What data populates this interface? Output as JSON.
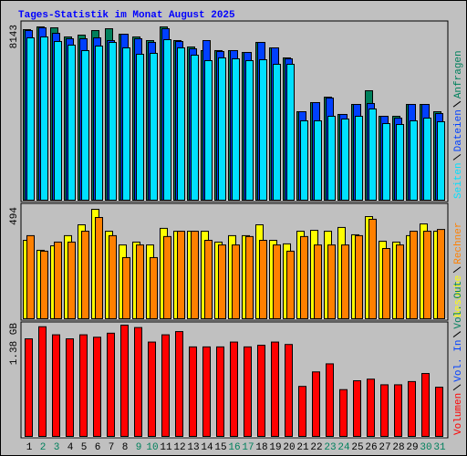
{
  "title": "Tages-Statistik im Monat August 2025",
  "chart_data": [
    {
      "type": "bar",
      "ylim": [
        0,
        8143
      ],
      "yticks": [
        8143
      ],
      "legend_reverse": true,
      "series": [
        {
          "name": "Anfragen",
          "color": "#00805C",
          "values": [
            8014,
            8143,
            8100,
            7671,
            7757,
            7971,
            8057,
            7800,
            7671,
            7500,
            8143,
            7500,
            7200,
            7029,
            7029,
            7029,
            6943,
            7414,
            7157,
            6686,
            4157,
            4586,
            4843,
            4029,
            4500,
            5143,
            3943,
            3943,
            4500,
            4500,
            4157
          ]
        },
        {
          "name": "Dateien",
          "color": "#0040FF",
          "values": [
            7971,
            8100,
            7843,
            7586,
            7586,
            7629,
            7500,
            7800,
            7586,
            7414,
            8057,
            7457,
            7114,
            7500,
            6986,
            7029,
            6943,
            7414,
            7157,
            6643,
            4157,
            4586,
            4800,
            4029,
            4500,
            4543,
            3943,
            3857,
            4500,
            4500,
            4071
          ]
        },
        {
          "name": "Seiten",
          "color": "#00E0FF",
          "values": [
            7629,
            7671,
            7457,
            7286,
            7029,
            7243,
            7414,
            7157,
            6857,
            6900,
            7543,
            7157,
            6814,
            6557,
            6686,
            6643,
            6557,
            6600,
            6386,
            6386,
            3729,
            3729,
            3943,
            3814,
            3943,
            4286,
            3600,
            3557,
            3729,
            3857,
            3686
          ]
        }
      ]
    },
    {
      "type": "bar",
      "ylim": [
        0,
        494
      ],
      "yticks": [
        494
      ],
      "series": [
        {
          "name": "Besuche",
          "color": "#FFFF00",
          "values": [
            354,
            309,
            329,
            375,
            424,
            494,
            395,
            333,
            346,
            333,
            408,
            395,
            395,
            395,
            346,
            375,
            375,
            424,
            354,
            338,
            395,
            399,
            395,
            412,
            379,
            461,
            350,
            346,
            375,
            428,
            395
          ]
        },
        {
          "name": "Rechner",
          "color": "#FF8000",
          "values": [
            375,
            305,
            346,
            346,
            395,
            457,
            375,
            276,
            333,
            276,
            371,
            395,
            395,
            354,
            333,
            333,
            371,
            354,
            333,
            305,
            371,
            333,
            333,
            333,
            375,
            449,
            317,
            333,
            395,
            395,
            403
          ]
        }
      ]
    },
    {
      "type": "bar",
      "ylim": [
        0,
        1.38
      ],
      "yticks": [
        {
          "value": 1.38,
          "label": "1.38 GB"
        }
      ],
      "categories": [
        "1",
        "2",
        "3",
        "4",
        "5",
        "6",
        "7",
        "8",
        "9",
        "10",
        "11",
        "12",
        "13",
        "14",
        "15",
        "16",
        "17",
        "18",
        "19",
        "20",
        "21",
        "22",
        "23",
        "24",
        "25",
        "26",
        "27",
        "28",
        "29",
        "30",
        "31"
      ],
      "category_colors": [
        "#000000",
        "#00805C",
        "#00805C",
        "#000000",
        "#000000",
        "#000000",
        "#000000",
        "#000000",
        "#00805C",
        "#00805C",
        "#000000",
        "#000000",
        "#000000",
        "#000000",
        "#000000",
        "#00805C",
        "#00805C",
        "#000000",
        "#000000",
        "#000000",
        "#000000",
        "#000000",
        "#00805C",
        "#00805C",
        "#000000",
        "#000000",
        "#000000",
        "#000000",
        "#000000",
        "#00805C",
        "#00805C"
      ],
      "series": [
        {
          "name": "Volumen",
          "color": "#FF0000",
          "values": [
            1.21,
            1.36,
            1.26,
            1.21,
            1.26,
            1.23,
            1.28,
            1.38,
            1.35,
            1.17,
            1.26,
            1.3,
            1.11,
            1.11,
            1.11,
            1.17,
            1.11,
            1.13,
            1.17,
            1.14,
            0.62,
            0.8,
            0.9,
            0.58,
            0.69,
            0.71,
            0.64,
            0.64,
            0.68,
            0.78,
            0.61
          ]
        },
        {
          "name": "Vol. In",
          "color": "#0040FF"
        },
        {
          "name": "Vol. Out",
          "color": "#00805C"
        }
      ]
    }
  ]
}
